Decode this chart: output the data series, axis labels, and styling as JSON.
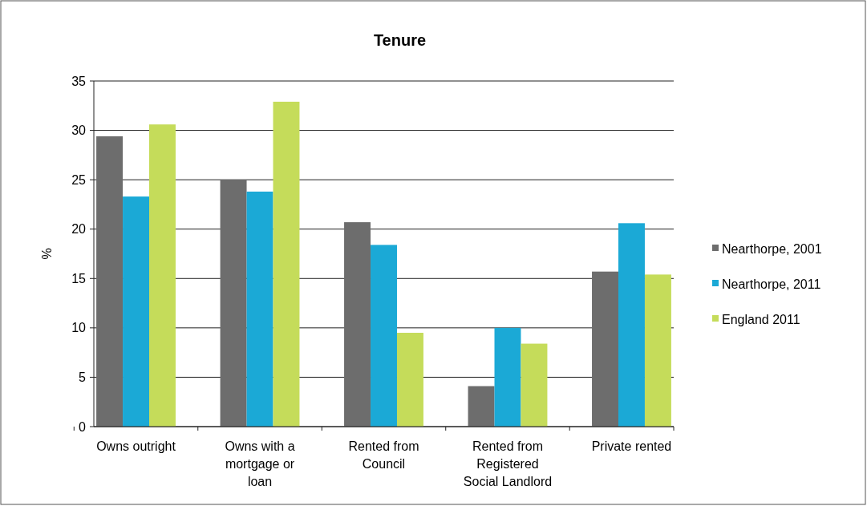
{
  "chart_data": {
    "type": "bar",
    "title": "Tenure",
    "ylabel": "%",
    "categories": [
      "Owns outright",
      "Owns with a mortgage or loan",
      "Rented from Council",
      "Rented from Registered Social Landlord",
      "Private rented"
    ],
    "series": [
      {
        "name": "Nearthorpe, 2001",
        "color": "#6d6d6d",
        "values": [
          29.4,
          25.0,
          20.7,
          4.1,
          15.7
        ]
      },
      {
        "name": "Nearthorpe, 2011",
        "color": "#1ba9d6",
        "values": [
          23.3,
          23.8,
          18.4,
          10.0,
          20.6
        ]
      },
      {
        "name": "England 2011",
        "color": "#c5dc5a",
        "values": [
          30.6,
          32.9,
          9.5,
          8.4,
          15.4
        ]
      }
    ],
    "ylim": [
      0,
      35
    ],
    "yticks": [
      0,
      5,
      10,
      15,
      20,
      25,
      30,
      35
    ],
    "grid": "y",
    "legend": "right"
  }
}
